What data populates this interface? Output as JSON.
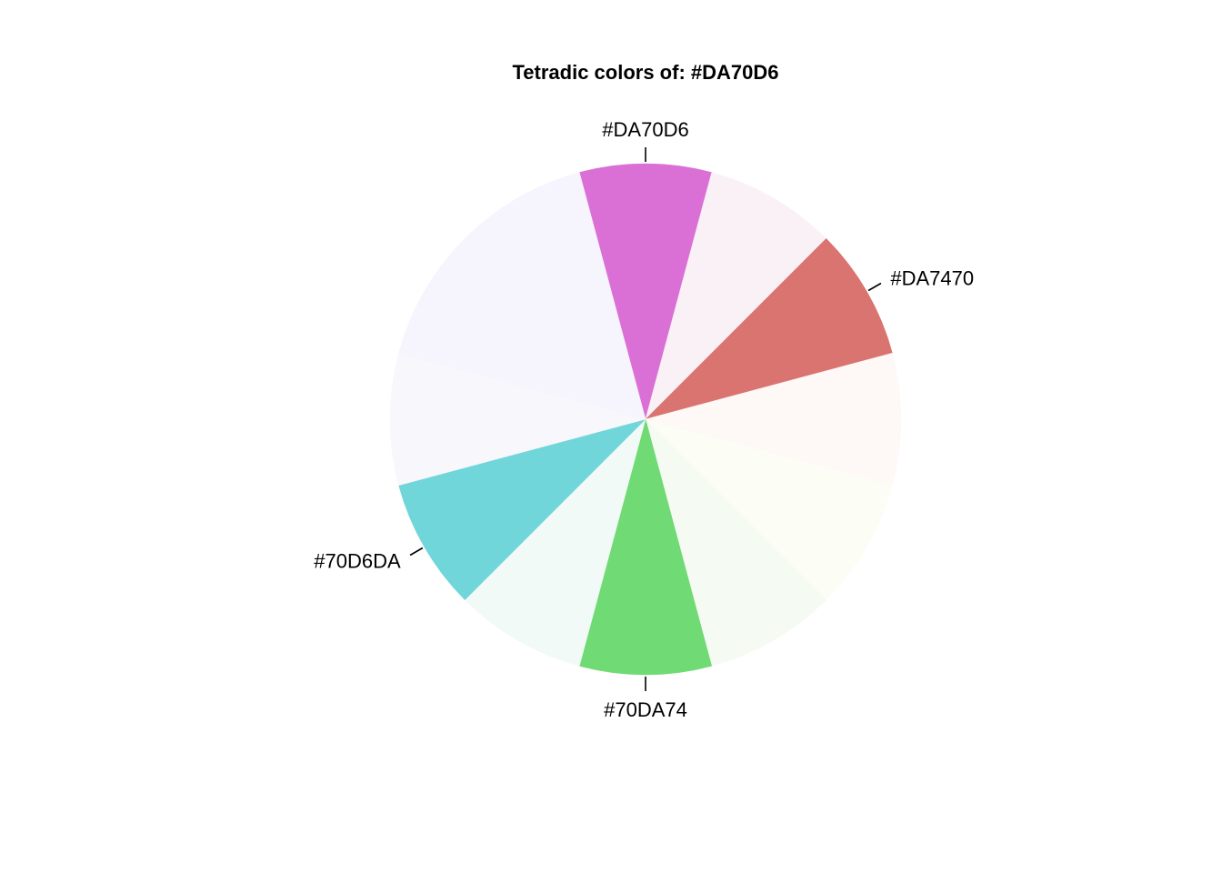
{
  "chart_data": {
    "type": "pie",
    "title": "Tetradic colors of:  #DA70D6",
    "start": "top",
    "direction": "clockwise",
    "slices": [
      {
        "value": 1,
        "color": "#DA70D6",
        "label": "#DA70D6"
      },
      {
        "value": 1,
        "color": "#F9F1F6",
        "label": ""
      },
      {
        "value": 1,
        "color": "#DA7470",
        "label": "#DA7470"
      },
      {
        "value": 1,
        "color": "#FEF8F6",
        "label": ""
      },
      {
        "value": 1,
        "color": "#FCFDF5",
        "label": ""
      },
      {
        "value": 1,
        "color": "#F5FBF2",
        "label": ""
      },
      {
        "value": 1,
        "color": "#70DA74",
        "label": "#70DA74"
      },
      {
        "value": 1,
        "color": "#F2FAF7",
        "label": ""
      },
      {
        "value": 1,
        "color": "#70D6DA",
        "label": "#70D6DA"
      },
      {
        "value": 1,
        "color": "#F7F7FC",
        "label": ""
      },
      {
        "value": 2,
        "color": "#F6F4FC",
        "label": ""
      }
    ]
  }
}
